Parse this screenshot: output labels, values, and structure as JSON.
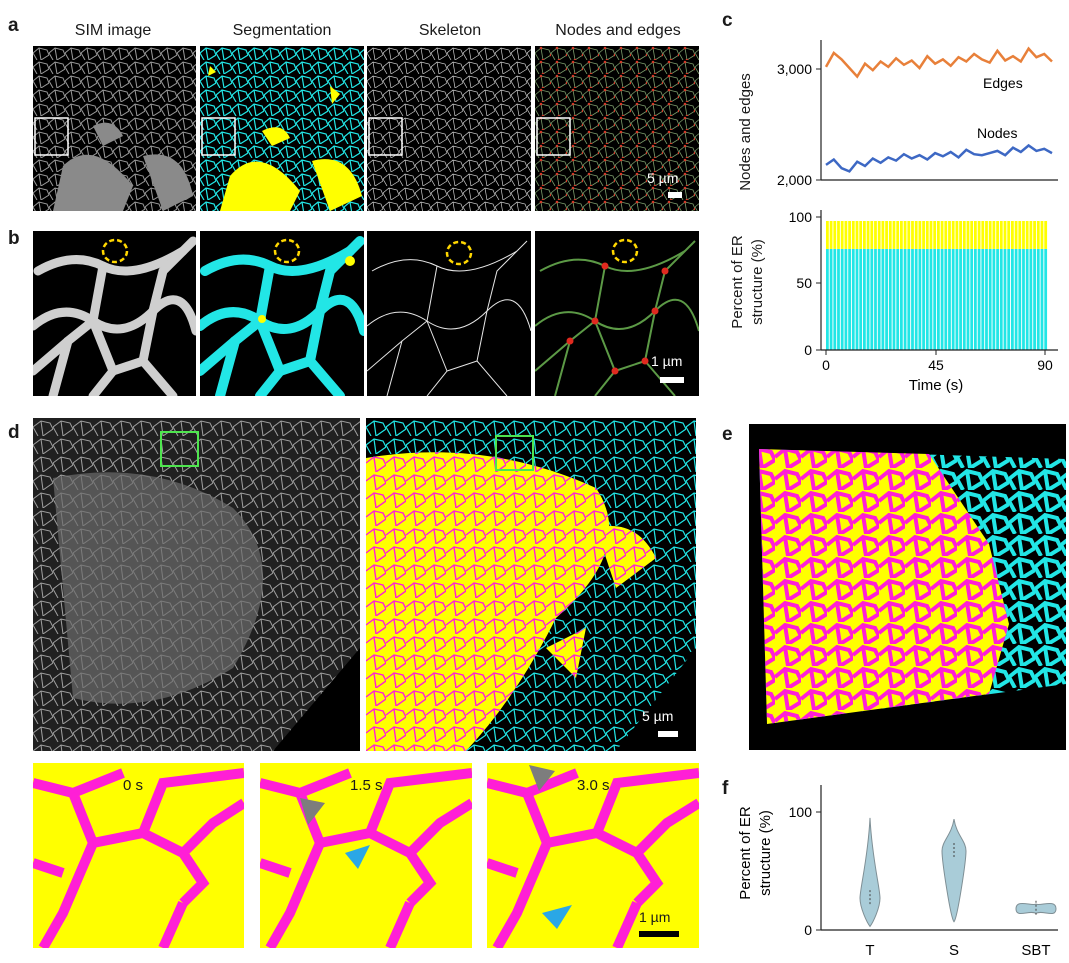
{
  "panels": {
    "a": {
      "label": "a",
      "titles": [
        "SIM image",
        "Segmentation",
        "Skeleton",
        "Nodes and edges"
      ],
      "scale": "5 µm"
    },
    "b": {
      "label": "b",
      "scale": "1 µm"
    },
    "c": {
      "label": "c"
    },
    "d": {
      "label": "d",
      "scale_top": "5 µm",
      "time_labels": [
        "0 s",
        "1.5 s",
        "3.0 s"
      ],
      "scale_bottom": "1 µm"
    },
    "e": {
      "label": "e"
    },
    "f": {
      "label": "f"
    }
  },
  "colors": {
    "cyan": "#22e6e6",
    "yellow": "#ffff00",
    "magenta": "#ff1fd6",
    "edges_line": "#e8803a",
    "nodes_line": "#3d68c4",
    "violin": "#a9ccd8",
    "arrow_gray": "#7d7d7d",
    "arrow_blue": "#2aa7e6"
  },
  "chart_data": [
    {
      "type": "line",
      "ylabel": "Nodes and edges",
      "ylim": [
        2000,
        3300
      ],
      "yticks": [
        "2,000",
        "3,000"
      ],
      "series": [
        {
          "name": "Edges",
          "values": [
            3050,
            3180,
            3120,
            3040,
            2960,
            3080,
            3020,
            3100,
            3050,
            3130,
            3070,
            3110,
            3040,
            3150,
            3080,
            3120,
            3060,
            3140,
            3100,
            3170,
            3120,
            3090,
            3200,
            3110,
            3150,
            3100,
            3220,
            3140,
            3170,
            3100
          ]
        },
        {
          "name": "Nodes",
          "values": [
            2140,
            2190,
            2110,
            2080,
            2170,
            2130,
            2200,
            2160,
            2210,
            2180,
            2240,
            2200,
            2230,
            2190,
            2250,
            2220,
            2260,
            2210,
            2280,
            2240,
            2230,
            2250,
            2270,
            2230,
            2300,
            2260,
            2320,
            2270,
            2290,
            2250
          ]
        }
      ]
    },
    {
      "type": "bar",
      "ylabel": "Percent of ER structure (%)",
      "xlabel": "Time (s)",
      "ylim": [
        0,
        100
      ],
      "yticks": [
        "0",
        "50",
        "100"
      ],
      "xticks": [
        "0",
        "45",
        "90"
      ],
      "bar_count": 60,
      "series": [
        {
          "values_cyan": 76
        },
        {
          "values_yellow_top": 97
        }
      ]
    },
    {
      "type": "violin",
      "ylabel": "Percent of ER structure (%)",
      "categories": [
        "T",
        "S",
        "SBT"
      ],
      "yticks": [
        "0",
        "100"
      ],
      "ylim": [
        0,
        120
      ],
      "medians": [
        27,
        67,
        18
      ],
      "ranges": [
        [
          3,
          95
        ],
        [
          7,
          94
        ],
        [
          14,
          22
        ]
      ]
    }
  ]
}
